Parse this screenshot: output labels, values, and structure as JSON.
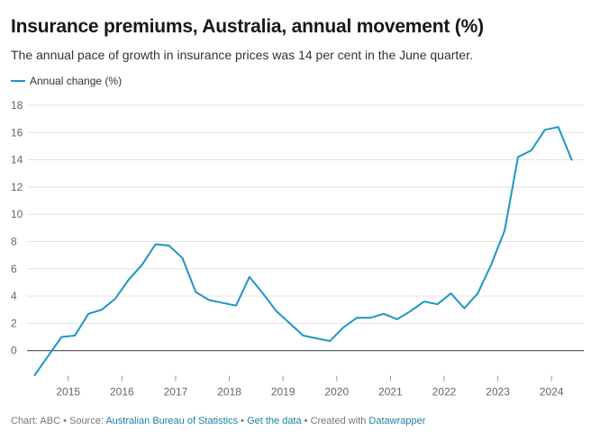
{
  "header": {
    "title": "Insurance premiums, Australia, annual movement (%)",
    "subtitle": "The annual pace of growth in insurance prices was 14 per cent in the June quarter."
  },
  "legend": {
    "label": "Annual change (%)",
    "color": "#1d96c6"
  },
  "footer": {
    "prefix": "Chart: ABC • Source: ",
    "source_link": "Australian Bureau of Statistics",
    "sep1": " • ",
    "data_link": "Get the data",
    "sep2": " • Created with ",
    "tool_link": "Datawrapper"
  },
  "chart_data": {
    "type": "line",
    "title": "Insurance premiums, Australia, annual movement (%)",
    "xlabel": "",
    "ylabel": "",
    "ylim": [
      -2,
      18
    ],
    "yticks": [
      0,
      2,
      4,
      6,
      8,
      10,
      12,
      14,
      16,
      18
    ],
    "xlim": [
      2014.3,
      2024.6
    ],
    "xticks": [
      "2015",
      "2016",
      "2017",
      "2018",
      "2019",
      "2020",
      "2021",
      "2022",
      "2023",
      "2024"
    ],
    "series": [
      {
        "name": "Annual change (%)",
        "color": "#1d96c6",
        "x": [
          2014.375,
          2014.625,
          2014.875,
          2015.125,
          2015.375,
          2015.625,
          2015.875,
          2016.125,
          2016.375,
          2016.625,
          2016.875,
          2017.125,
          2017.375,
          2017.625,
          2017.875,
          2018.125,
          2018.375,
          2018.625,
          2018.875,
          2019.125,
          2019.375,
          2019.625,
          2019.875,
          2020.125,
          2020.375,
          2020.625,
          2020.875,
          2021.125,
          2021.375,
          2021.625,
          2021.875,
          2022.125,
          2022.375,
          2022.625,
          2022.875,
          2023.125,
          2023.375,
          2023.625,
          2023.875,
          2024.125,
          2024.375
        ],
        "values": [
          -1.8,
          -0.4,
          1.0,
          1.1,
          2.7,
          3.0,
          3.8,
          5.2,
          6.3,
          7.8,
          7.7,
          6.8,
          4.3,
          3.7,
          3.5,
          3.3,
          5.4,
          4.2,
          2.9,
          2.0,
          1.1,
          0.9,
          0.7,
          1.7,
          2.4,
          2.4,
          2.7,
          2.3,
          2.9,
          3.6,
          3.4,
          4.2,
          3.1,
          4.2,
          6.3,
          8.8,
          14.2,
          14.7,
          16.2,
          16.4,
          14.0
        ]
      }
    ]
  }
}
